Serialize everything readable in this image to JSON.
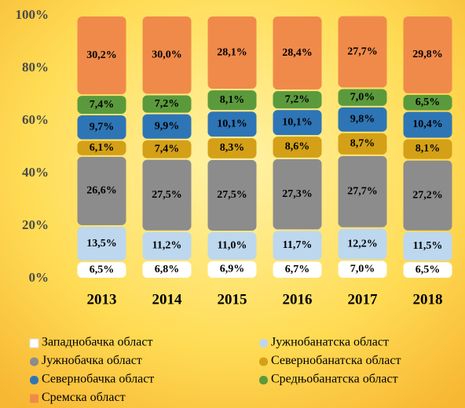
{
  "chart_data": {
    "type": "stacked_bar",
    "categories": [
      "2013",
      "2014",
      "2015",
      "2016",
      "2017",
      "2018"
    ],
    "ylim": [
      0,
      100
    ],
    "yticks": [
      {
        "value": 0,
        "label": "0%"
      },
      {
        "value": 20,
        "label": "20%"
      },
      {
        "value": 40,
        "label": "40%"
      },
      {
        "value": 60,
        "label": "60%"
      },
      {
        "value": 80,
        "label": "80%"
      },
      {
        "value": 100,
        "label": "100%"
      }
    ],
    "legend": "bottom",
    "series": [
      {
        "name": "Западнобачка област",
        "color": "#ffffff",
        "values": [
          6.5,
          6.8,
          6.9,
          6.7,
          7.0,
          6.5
        ],
        "value_labels": [
          "6,5%",
          "6,8%",
          "6,9%",
          "6,7%",
          "7,0%",
          "6,5%"
        ]
      },
      {
        "name": "Јужнобанатска област",
        "color": "#bdd7ee",
        "values": [
          13.5,
          11.2,
          11.0,
          11.7,
          12.2,
          11.5
        ],
        "value_labels": [
          "13,5%",
          "11,2%",
          "11,0%",
          "11,7%",
          "12,2%",
          "11,5%"
        ]
      },
      {
        "name": "Јужнобачка област",
        "color": "#8c8c8c",
        "values": [
          26.6,
          27.5,
          27.5,
          27.3,
          27.7,
          27.2
        ],
        "value_labels": [
          "26,6%",
          "27,5%",
          "27,5%",
          "27,3%",
          "27,7%",
          "27,2%"
        ]
      },
      {
        "name": "Севернобанатска област",
        "color": "#d4a017",
        "values": [
          6.1,
          7.4,
          8.3,
          8.6,
          8.7,
          8.1
        ],
        "value_labels": [
          "6,1%",
          "7,4%",
          "8,3%",
          "8,6%",
          "8,7%",
          "8,1%"
        ]
      },
      {
        "name": "Севернобачка област",
        "color": "#2e75b6",
        "values": [
          9.7,
          9.9,
          10.1,
          10.1,
          9.8,
          10.4
        ],
        "value_labels": [
          "9,7%",
          "9,9%",
          "10,1%",
          "10,1%",
          "9,8%",
          "10,4%"
        ]
      },
      {
        "name": "Средњобанатска област",
        "color": "#5b9a3c",
        "values": [
          7.4,
          7.2,
          8.1,
          7.2,
          7.0,
          6.5
        ],
        "value_labels": [
          "7,4%",
          "7,2%",
          "8,1%",
          "7,2%",
          "7,0%",
          "6,5%"
        ]
      },
      {
        "name": "Сремска област",
        "color": "#f08a4b",
        "values": [
          30.2,
          30.0,
          28.1,
          28.4,
          27.7,
          29.8
        ],
        "value_labels": [
          "30,2%",
          "30,0%",
          "28,1%",
          "28,4%",
          "27,7%",
          "29,8%"
        ]
      }
    ]
  }
}
